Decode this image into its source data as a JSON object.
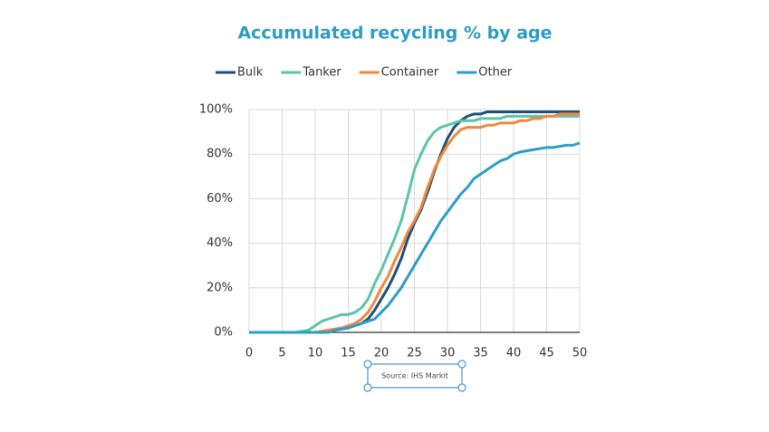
{
  "chart_data": {
    "type": "line",
    "title": "Accumulated recycling % by age",
    "source": "Source: IHS Markit",
    "x": [
      0,
      1,
      2,
      3,
      4,
      5,
      6,
      7,
      8,
      9,
      10,
      11,
      12,
      13,
      14,
      15,
      16,
      17,
      18,
      19,
      20,
      21,
      22,
      23,
      24,
      25,
      26,
      27,
      28,
      29,
      30,
      31,
      32,
      33,
      34,
      35,
      36,
      37,
      38,
      39,
      40,
      41,
      42,
      43,
      44,
      45,
      46,
      47,
      48,
      49,
      50
    ],
    "series": [
      {
        "name": "Bulk",
        "color": "#1f4e79",
        "values": [
          0,
          0,
          0,
          0,
          0,
          0,
          0,
          0,
          0,
          0,
          0,
          0,
          0.5,
          1,
          1.5,
          2,
          3,
          4,
          6,
          10,
          15,
          20,
          26,
          33,
          42,
          49,
          55,
          63,
          72,
          80,
          87,
          92,
          95,
          97,
          98,
          98,
          99,
          99,
          99,
          99,
          99,
          99,
          99,
          99,
          99,
          99,
          99,
          99,
          99,
          99,
          99
        ]
      },
      {
        "name": "Tanker",
        "color": "#5cc5a7",
        "values": [
          0,
          0,
          0,
          0,
          0,
          0,
          0,
          0,
          0.5,
          1,
          3,
          5,
          6,
          7,
          8,
          8,
          9,
          11,
          15,
          22,
          28,
          35,
          42,
          50,
          61,
          73,
          80,
          86,
          90,
          92,
          93,
          94,
          95,
          95,
          95,
          96,
          96,
          96,
          96,
          97,
          97,
          97,
          97,
          97,
          97,
          97,
          97,
          97,
          97,
          97,
          97
        ]
      },
      {
        "name": "Container",
        "color": "#f0883e",
        "values": [
          0,
          0,
          0,
          0,
          0,
          0,
          0,
          0,
          0,
          0,
          0,
          0.5,
          1,
          1.5,
          2,
          3,
          4,
          6,
          9,
          14,
          20,
          25,
          32,
          38,
          45,
          50,
          56,
          65,
          73,
          79,
          84,
          88,
          91,
          92,
          92,
          92,
          93,
          93,
          94,
          94,
          94,
          95,
          95,
          96,
          96,
          97,
          97,
          98,
          98,
          98,
          98
        ]
      },
      {
        "name": "Other",
        "color": "#2e9cca",
        "values": [
          0,
          0,
          0,
          0,
          0,
          0,
          0,
          0,
          0,
          0,
          0,
          0,
          0,
          1,
          1.5,
          2,
          3,
          4,
          5,
          6,
          9,
          12,
          16,
          20,
          25,
          30,
          35,
          40,
          45,
          50,
          54,
          58,
          62,
          65,
          69,
          71,
          73,
          75,
          77,
          78,
          80,
          81,
          81.5,
          82,
          82.5,
          83,
          83,
          83.5,
          84,
          84,
          85
        ]
      }
    ],
    "xlim": [
      0,
      50
    ],
    "xticks": [
      0,
      5,
      10,
      15,
      20,
      25,
      30,
      35,
      40,
      45,
      50
    ],
    "ylim": [
      0,
      100
    ],
    "yticks": [
      {
        "value": 0,
        "label": "0%"
      },
      {
        "value": 20,
        "label": "20%"
      },
      {
        "value": 40,
        "label": "40%"
      },
      {
        "value": 60,
        "label": "60%"
      },
      {
        "value": 80,
        "label": "80%"
      },
      {
        "value": 100,
        "label": "100%"
      }
    ],
    "grid": true,
    "legend": "top"
  }
}
